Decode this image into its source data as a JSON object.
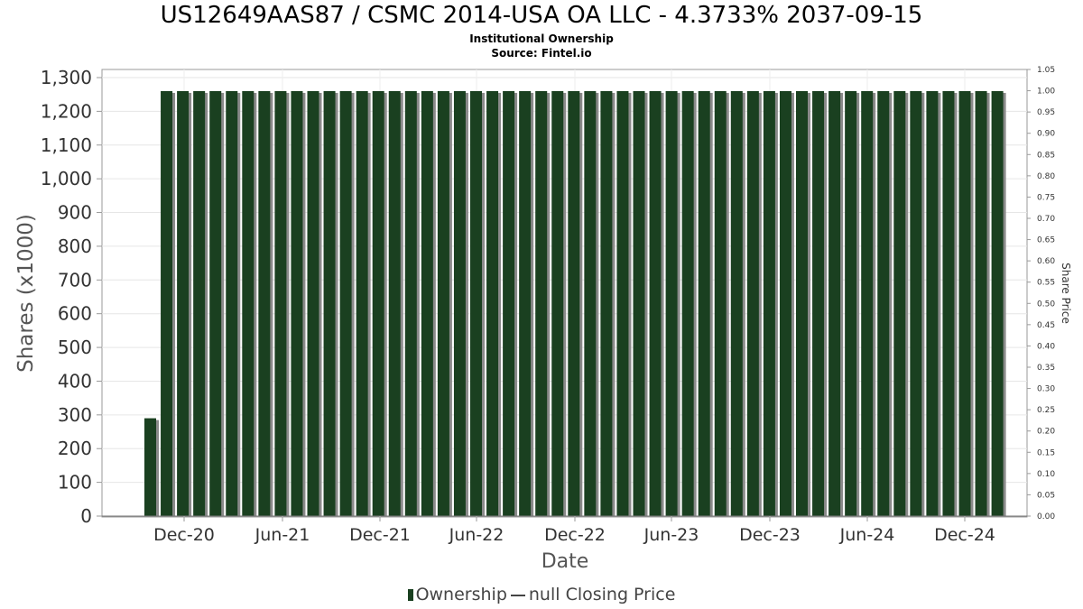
{
  "chart_data": {
    "type": "bar",
    "title": "US12649AAS87 / CSMC 2014-USA OA LLC - 4.3733% 2037-09-15",
    "subtitle": "Institutional Ownership",
    "source": "Source: Fintel.io",
    "xlabel": "Date",
    "ylabel": "Shares (x1000)",
    "ylabel_right": "Share Price",
    "ylim": [
      0,
      1300
    ],
    "ylim_right": [
      0,
      1.05
    ],
    "yticks": [
      "0",
      "100",
      "200",
      "300",
      "400",
      "500",
      "600",
      "700",
      "800",
      "900",
      "1,000",
      "1,100",
      "1,200",
      "1,300"
    ],
    "yticks_right": [
      "0.00",
      "0.05",
      "0.10",
      "0.15",
      "0.20",
      "0.25",
      "0.30",
      "0.35",
      "0.40",
      "0.45",
      "0.50",
      "0.55",
      "0.60",
      "0.65",
      "0.70",
      "0.75",
      "0.80",
      "0.85",
      "0.90",
      "0.95",
      "1.00",
      "1.05"
    ],
    "xticks": [
      "Dec-20",
      "Jun-21",
      "Dec-21",
      "Jun-22",
      "Dec-22",
      "Jun-23",
      "Dec-23",
      "Jun-24",
      "Dec-24"
    ],
    "grid": true,
    "legend_position": "bottom",
    "series": [
      {
        "name": "Ownership",
        "color": "#1a4020",
        "values": [
          290,
          1260,
          1260,
          1260,
          1260,
          1260,
          1260,
          1260,
          1260,
          1260,
          1260,
          1260,
          1260,
          1260,
          1260,
          1260,
          1260,
          1260,
          1260,
          1260,
          1260,
          1260,
          1260,
          1260,
          1260,
          1260,
          1260,
          1260,
          1260,
          1260,
          1260,
          1260,
          1260,
          1260,
          1260,
          1260,
          1260,
          1260,
          1260,
          1260,
          1260,
          1260,
          1260,
          1260,
          1260,
          1260,
          1260,
          1260,
          1260,
          1260,
          1260,
          1260,
          1260
        ]
      }
    ],
    "legend": {
      "ownership_label": "Ownership",
      "price_label": "null Closing Price"
    }
  }
}
